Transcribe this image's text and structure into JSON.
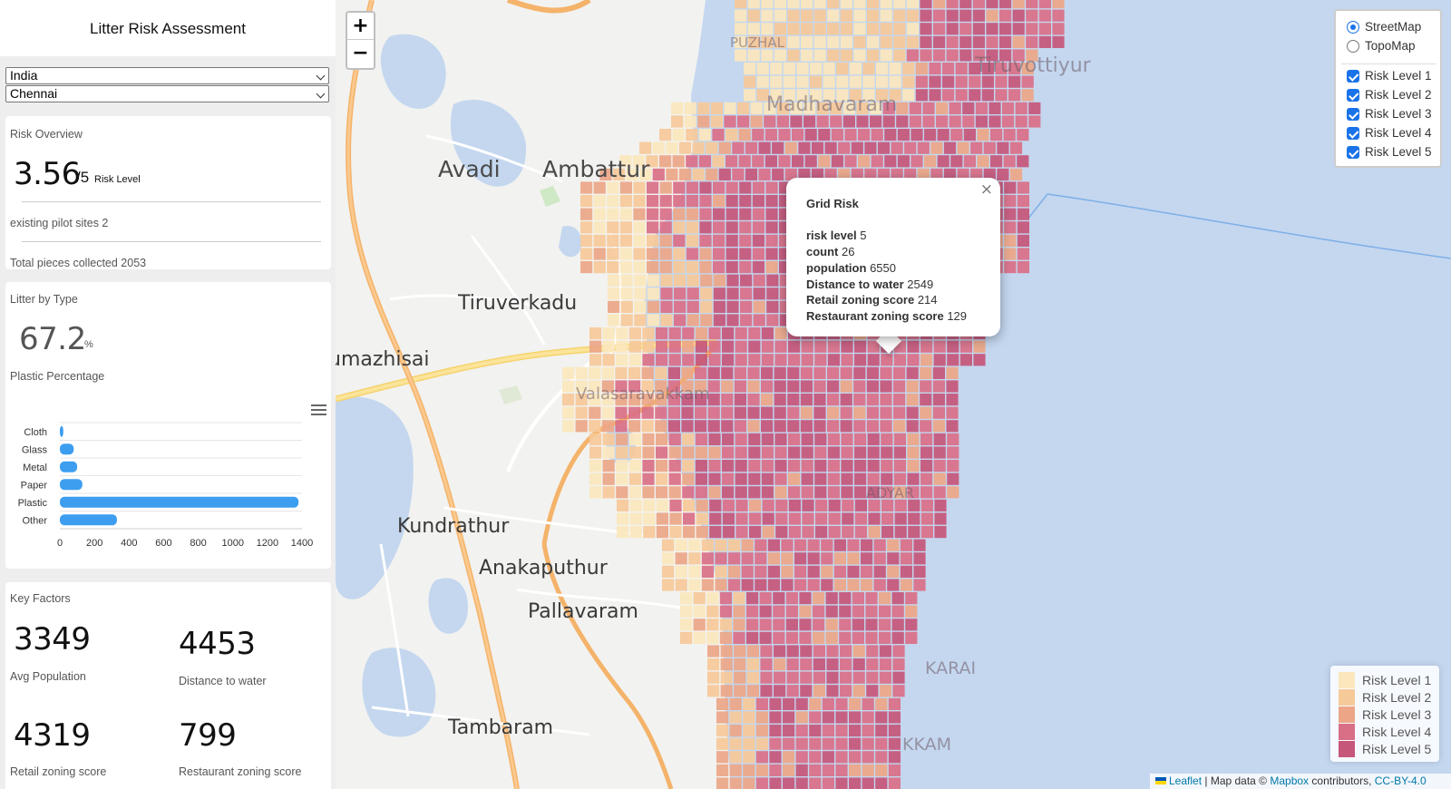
{
  "app": {
    "title": "Litter Risk Assessment"
  },
  "filters": {
    "country": "India",
    "city": "Chennai"
  },
  "risk_overview": {
    "title": "Risk Overview",
    "value": "3.56",
    "max": "/5",
    "unit_label": "Risk Level",
    "pilot_sites": "existing pilot sites 2",
    "total_pieces": "Total pieces collected 2053"
  },
  "litter_by_type": {
    "title": "Litter by Type",
    "plastic_value": "67.2",
    "plastic_unit": "%",
    "plastic_label": "Plastic Percentage"
  },
  "chart_data": {
    "type": "bar",
    "orientation": "horizontal",
    "categories": [
      "Cloth",
      "Glass",
      "Metal",
      "Paper",
      "Plastic",
      "Other"
    ],
    "values": [
      20,
      80,
      100,
      130,
      1380,
      330
    ],
    "xlim": [
      0,
      1400
    ],
    "xticks": [
      0,
      200,
      400,
      600,
      800,
      1000,
      1200,
      1400
    ],
    "color": "#3d9ef0",
    "grid": true
  },
  "key_factors": {
    "title": "Key Factors",
    "avg_population": "3349",
    "avg_population_label": "Avg Population",
    "distance_to_water": "4453",
    "distance_to_water_label": "Distance to water",
    "retail_zoning": "4319",
    "retail_zoning_label": "Retail zoning score",
    "restaurant_zoning": "799",
    "restaurant_zoning_label": "Restaurant zoning score"
  },
  "map": {
    "zoom_in": "+",
    "zoom_out": "−",
    "base_layers": [
      "StreetMap",
      "TopoMap"
    ],
    "selected_base_layer": "StreetMap",
    "overlays": [
      "Risk Level 1",
      "Risk Level 2",
      "Risk Level 3",
      "Risk Level 4",
      "Risk Level 5"
    ],
    "places": [
      "Avadi",
      "Ambattur",
      "Tiruverkadu",
      "umazhisai",
      "Kundrathur",
      "Anakaputhur",
      "Pallavaram",
      "Tambaram",
      "Madhavaram",
      "Tiruvottiyur",
      "PUZHAL",
      "Valasaravakkam",
      "KARAI",
      "KKAM",
      "ADYAR"
    ],
    "risk_colors": [
      "#fbe7bd",
      "#f6c999",
      "#eca687",
      "#d96f87",
      "#c6567a"
    ],
    "popup": {
      "title": "Grid Risk",
      "close": "×",
      "rows": [
        {
          "label": "risk level",
          "value": "5"
        },
        {
          "label": "count",
          "value": "26"
        },
        {
          "label": "population",
          "value": "6550"
        },
        {
          "label": "Distance to water",
          "value": "2549"
        },
        {
          "label": "Retail zoning score",
          "value": "214"
        },
        {
          "label": "Restaurant zoning score",
          "value": "129"
        }
      ]
    },
    "legend": [
      "Risk Level 1",
      "Risk Level 2",
      "Risk Level 3",
      "Risk Level 4",
      "Risk Level 5"
    ],
    "attribution": {
      "leaflet": "Leaflet",
      "middle": " | Map data © ",
      "mapbox": "Mapbox",
      "contributors": " contributors, ",
      "license": "CC-BY-4.0"
    }
  }
}
